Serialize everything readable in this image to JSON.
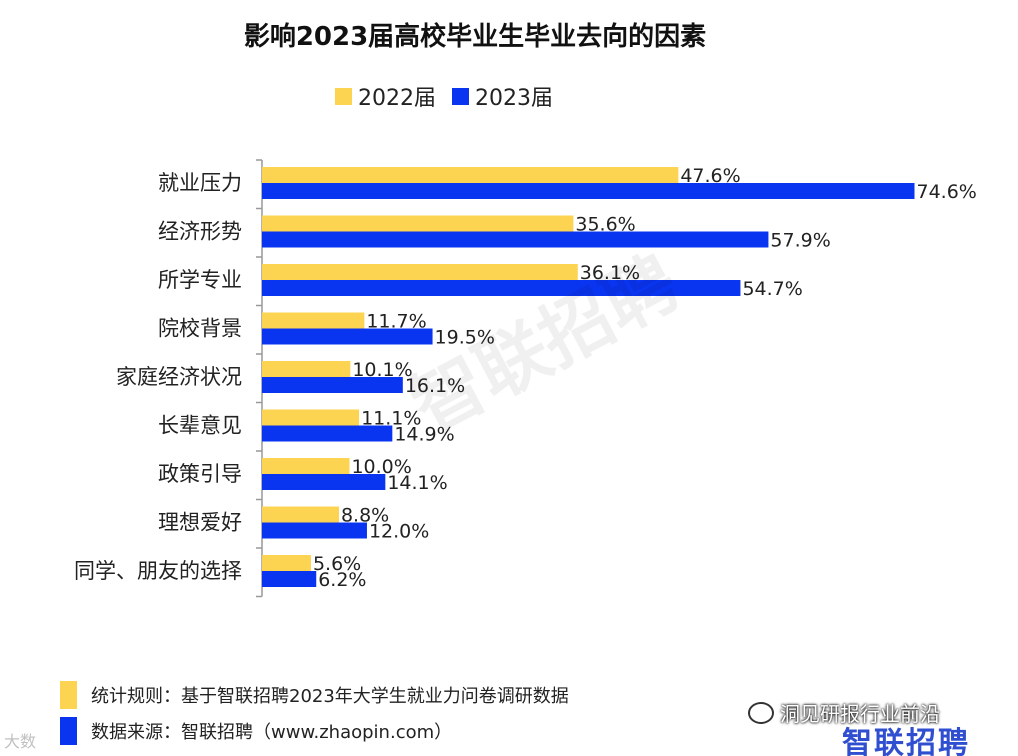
{
  "colors": {
    "series_2022": "#FDD452",
    "series_2023": "#0A35F0",
    "axis": "#999999"
  },
  "watermark": "智联招聘",
  "chart_data": {
    "type": "bar",
    "orientation": "horizontal",
    "title": "影响2023届高校毕业生毕业去向的因素",
    "categories": [
      "就业压力",
      "经济形势",
      "所学专业",
      "院校背景",
      "家庭经济状况",
      "长辈意见",
      "政策引导",
      "理想爱好",
      "同学、朋友的选择"
    ],
    "series": [
      {
        "name": "2022届",
        "values": [
          47.6,
          35.6,
          36.1,
          11.7,
          10.1,
          11.1,
          10.0,
          8.8,
          5.6
        ],
        "labels": [
          "47.6%",
          "35.6%",
          "36.1%",
          "11.7%",
          "10.1%",
          "11.1%",
          "10.0%",
          "8.8%",
          "5.6%"
        ],
        "color": "#FDD452"
      },
      {
        "name": "2023届",
        "values": [
          74.6,
          57.9,
          54.7,
          19.5,
          16.1,
          14.9,
          14.1,
          12.0,
          6.2
        ],
        "labels": [
          "74.6%",
          "57.9%",
          "54.7%",
          "19.5%",
          "16.1%",
          "14.9%",
          "14.1%",
          "12.0%",
          "6.2%"
        ],
        "color": "#0A35F0"
      }
    ],
    "xlim": [
      0,
      75
    ],
    "grid": false,
    "legend_position": "top-center"
  },
  "notes": {
    "rule": "统计规则：基于智联招聘2023年大学生就业力问卷调研数据",
    "source": "数据来源：智联招聘（www.zhaopin.com）"
  },
  "badge": {
    "wechat_text": "洞见研报行业前沿",
    "brand": "智联招聘",
    "corner_mark": "大数"
  }
}
